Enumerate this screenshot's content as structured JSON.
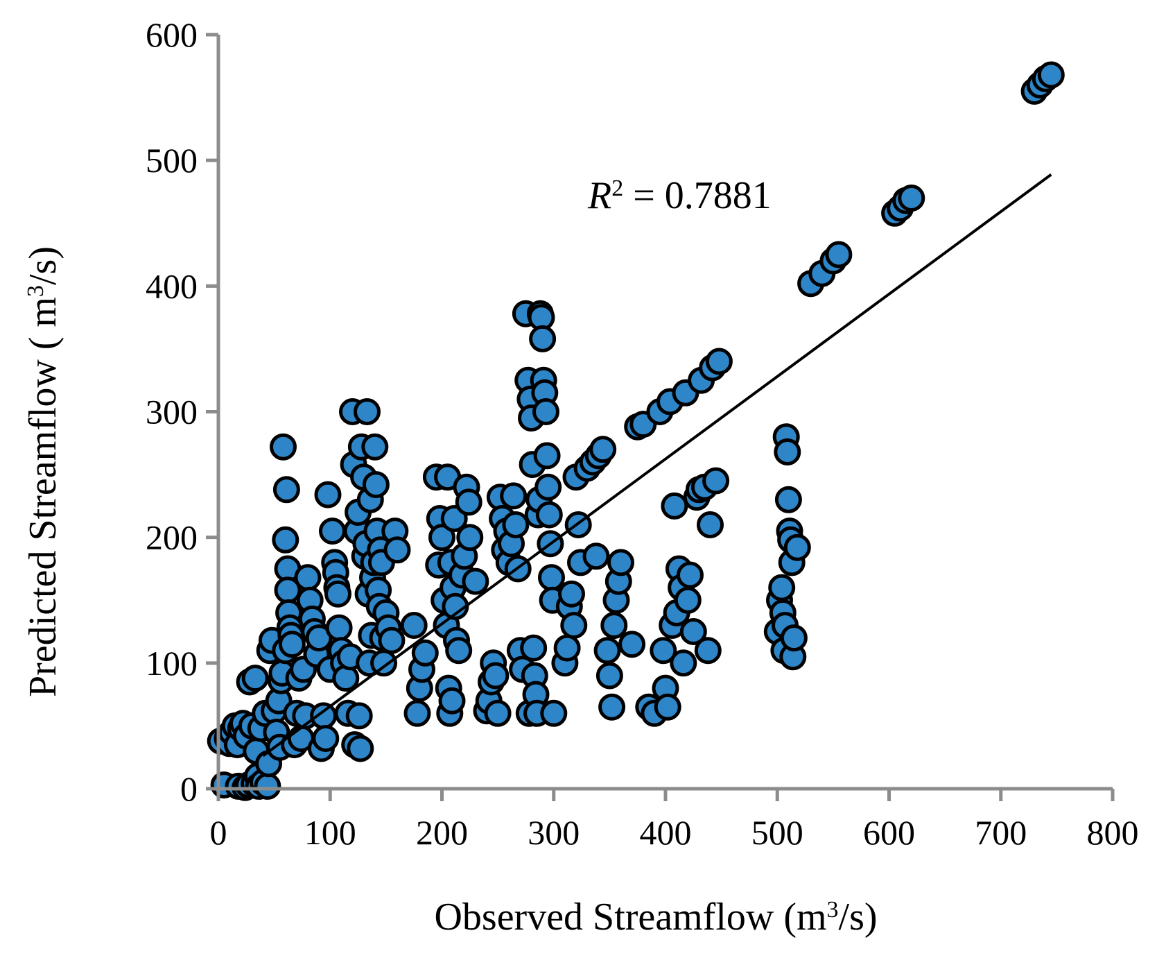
{
  "chart_data": {
    "type": "scatter",
    "title": "",
    "xlabel": {
      "main": "Observed Streamflow (m",
      "sup": "3",
      "tail": "/s)"
    },
    "ylabel": {
      "main": "Predicted  Streamflow ( m",
      "sup": "3",
      "tail": "/s)"
    },
    "xlim": [
      0,
      800
    ],
    "ylim": [
      0,
      600
    ],
    "x_ticks": [
      0,
      100,
      200,
      300,
      400,
      500,
      600,
      700,
      800
    ],
    "y_ticks": [
      0,
      100,
      200,
      300,
      400,
      500,
      600
    ],
    "x_tick_labels": [
      "0",
      "100",
      "200",
      "300",
      "400",
      "500",
      "600",
      "700",
      "800"
    ],
    "y_tick_labels": [
      "0",
      "100",
      "200",
      "300",
      "400",
      "500",
      "600"
    ],
    "grid": false,
    "marker_color": "#2e86c8",
    "marker_edge_color": "#000000",
    "trendline": {
      "type": "linear",
      "x_range": [
        40,
        745
      ],
      "slope": 0.656,
      "intercept": 0
    },
    "annotation": {
      "prefix": "R",
      "sup": "2",
      "text": " = 0.7881"
    },
    "r_squared": 0.7881,
    "points": [
      [
        2,
        38
      ],
      [
        5,
        3
      ],
      [
        8,
        40
      ],
      [
        10,
        36
      ],
      [
        12,
        45
      ],
      [
        15,
        50
      ],
      [
        17,
        35
      ],
      [
        18,
        2
      ],
      [
        20,
        48
      ],
      [
        22,
        52
      ],
      [
        24,
        1
      ],
      [
        25,
        42
      ],
      [
        27,
        3
      ],
      [
        28,
        85
      ],
      [
        30,
        50
      ],
      [
        32,
        4
      ],
      [
        33,
        88
      ],
      [
        34,
        30
      ],
      [
        35,
        10
      ],
      [
        36,
        2
      ],
      [
        38,
        48
      ],
      [
        40,
        5
      ],
      [
        42,
        60
      ],
      [
        44,
        2
      ],
      [
        45,
        20
      ],
      [
        46,
        110
      ],
      [
        48,
        118
      ],
      [
        50,
        62
      ],
      [
        52,
        45
      ],
      [
        54,
        70
      ],
      [
        55,
        33
      ],
      [
        56,
        86
      ],
      [
        57,
        92
      ],
      [
        58,
        272
      ],
      [
        60,
        198
      ],
      [
        60,
        110
      ],
      [
        61,
        238
      ],
      [
        62,
        175
      ],
      [
        62,
        158
      ],
      [
        63,
        140
      ],
      [
        64,
        128
      ],
      [
        65,
        122
      ],
      [
        66,
        115
      ],
      [
        68,
        35
      ],
      [
        70,
        60
      ],
      [
        72,
        88
      ],
      [
        74,
        40
      ],
      [
        76,
        95
      ],
      [
        78,
        58
      ],
      [
        80,
        168
      ],
      [
        82,
        150
      ],
      [
        84,
        135
      ],
      [
        86,
        125
      ],
      [
        88,
        107
      ],
      [
        90,
        120
      ],
      [
        92,
        32
      ],
      [
        94,
        58
      ],
      [
        96,
        40
      ],
      [
        98,
        234
      ],
      [
        100,
        95
      ],
      [
        102,
        205
      ],
      [
        104,
        180
      ],
      [
        105,
        172
      ],
      [
        106,
        160
      ],
      [
        107,
        155
      ],
      [
        108,
        128
      ],
      [
        110,
        110
      ],
      [
        112,
        100
      ],
      [
        114,
        88
      ],
      [
        116,
        60
      ],
      [
        118,
        105
      ],
      [
        120,
        300
      ],
      [
        121,
        258
      ],
      [
        122,
        35
      ],
      [
        124,
        205
      ],
      [
        125,
        220
      ],
      [
        126,
        58
      ],
      [
        127,
        32
      ],
      [
        128,
        272
      ],
      [
        130,
        248
      ],
      [
        131,
        185
      ],
      [
        132,
        195
      ],
      [
        133,
        300
      ],
      [
        134,
        155
      ],
      [
        135,
        100
      ],
      [
        136,
        230
      ],
      [
        137,
        122
      ],
      [
        138,
        168
      ],
      [
        139,
        180
      ],
      [
        140,
        272
      ],
      [
        141,
        242
      ],
      [
        142,
        205
      ],
      [
        143,
        158
      ],
      [
        144,
        145
      ],
      [
        145,
        190
      ],
      [
        146,
        180
      ],
      [
        147,
        120
      ],
      [
        148,
        100
      ],
      [
        150,
        140
      ],
      [
        152,
        128
      ],
      [
        155,
        118
      ],
      [
        158,
        205
      ],
      [
        160,
        190
      ],
      [
        175,
        130
      ],
      [
        178,
        60
      ],
      [
        180,
        80
      ],
      [
        182,
        95
      ],
      [
        185,
        108
      ],
      [
        195,
        248
      ],
      [
        197,
        178
      ],
      [
        198,
        215
      ],
      [
        200,
        200
      ],
      [
        202,
        150
      ],
      [
        204,
        130
      ],
      [
        205,
        248
      ],
      [
        206,
        80
      ],
      [
        207,
        60
      ],
      [
        208,
        180
      ],
      [
        209,
        70
      ],
      [
        210,
        160
      ],
      [
        211,
        215
      ],
      [
        212,
        145
      ],
      [
        213,
        118
      ],
      [
        215,
        110
      ],
      [
        218,
        170
      ],
      [
        220,
        185
      ],
      [
        222,
        240
      ],
      [
        224,
        228
      ],
      [
        225,
        200
      ],
      [
        230,
        165
      ],
      [
        240,
        62
      ],
      [
        242,
        70
      ],
      [
        244,
        85
      ],
      [
        246,
        100
      ],
      [
        248,
        90
      ],
      [
        250,
        60
      ],
      [
        252,
        232
      ],
      [
        254,
        215
      ],
      [
        256,
        190
      ],
      [
        258,
        205
      ],
      [
        260,
        180
      ],
      [
        262,
        195
      ],
      [
        264,
        233
      ],
      [
        266,
        210
      ],
      [
        268,
        175
      ],
      [
        270,
        110
      ],
      [
        272,
        95
      ],
      [
        275,
        378
      ],
      [
        277,
        325
      ],
      [
        278,
        60
      ],
      [
        279,
        310
      ],
      [
        280,
        295
      ],
      [
        281,
        258
      ],
      [
        282,
        112
      ],
      [
        283,
        90
      ],
      [
        284,
        75
      ],
      [
        285,
        60
      ],
      [
        286,
        218
      ],
      [
        287,
        230
      ],
      [
        288,
        378
      ],
      [
        289,
        375
      ],
      [
        290,
        358
      ],
      [
        291,
        325
      ],
      [
        292,
        315
      ],
      [
        293,
        300
      ],
      [
        294,
        265
      ],
      [
        295,
        240
      ],
      [
        296,
        218
      ],
      [
        297,
        195
      ],
      [
        298,
        168
      ],
      [
        299,
        150
      ],
      [
        300,
        60
      ],
      [
        310,
        100
      ],
      [
        312,
        112
      ],
      [
        314,
        145
      ],
      [
        316,
        155
      ],
      [
        318,
        130
      ],
      [
        320,
        248
      ],
      [
        322,
        210
      ],
      [
        324,
        180
      ],
      [
        330,
        255
      ],
      [
        335,
        260
      ],
      [
        338,
        185
      ],
      [
        340,
        265
      ],
      [
        344,
        270
      ],
      [
        348,
        110
      ],
      [
        350,
        90
      ],
      [
        352,
        65
      ],
      [
        354,
        130
      ],
      [
        356,
        150
      ],
      [
        358,
        165
      ],
      [
        360,
        180
      ],
      [
        370,
        115
      ],
      [
        375,
        288
      ],
      [
        380,
        290
      ],
      [
        385,
        65
      ],
      [
        390,
        60
      ],
      [
        395,
        300
      ],
      [
        398,
        110
      ],
      [
        400,
        80
      ],
      [
        402,
        65
      ],
      [
        404,
        308
      ],
      [
        406,
        130
      ],
      [
        408,
        225
      ],
      [
        410,
        140
      ],
      [
        412,
        175
      ],
      [
        414,
        160
      ],
      [
        416,
        100
      ],
      [
        418,
        315
      ],
      [
        420,
        150
      ],
      [
        422,
        170
      ],
      [
        425,
        125
      ],
      [
        428,
        232
      ],
      [
        430,
        238
      ],
      [
        432,
        325
      ],
      [
        435,
        240
      ],
      [
        438,
        110
      ],
      [
        440,
        210
      ],
      [
        442,
        335
      ],
      [
        445,
        245
      ],
      [
        448,
        340
      ],
      [
        500,
        125
      ],
      [
        502,
        150
      ],
      [
        504,
        160
      ],
      [
        505,
        140
      ],
      [
        506,
        110
      ],
      [
        507,
        130
      ],
      [
        508,
        280
      ],
      [
        509,
        268
      ],
      [
        510,
        230
      ],
      [
        511,
        205
      ],
      [
        512,
        198
      ],
      [
        513,
        180
      ],
      [
        514,
        105
      ],
      [
        515,
        120
      ],
      [
        518,
        192
      ],
      [
        530,
        402
      ],
      [
        540,
        410
      ],
      [
        550,
        420
      ],
      [
        555,
        425
      ],
      [
        605,
        458
      ],
      [
        610,
        462
      ],
      [
        615,
        468
      ],
      [
        620,
        470
      ],
      [
        730,
        555
      ],
      [
        735,
        560
      ],
      [
        740,
        565
      ],
      [
        745,
        568
      ]
    ]
  }
}
